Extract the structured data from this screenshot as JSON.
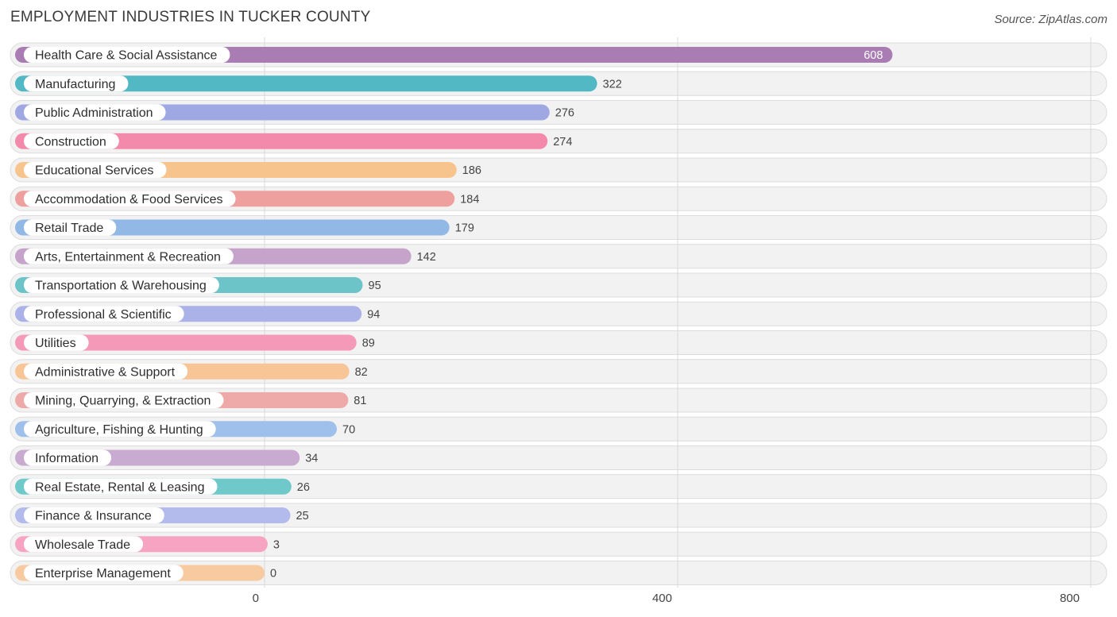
{
  "header": {
    "title": "EMPLOYMENT INDUSTRIES IN TUCKER COUNTY",
    "source": "Source: ZipAtlas.com"
  },
  "chart_data": {
    "type": "bar",
    "orientation": "horizontal",
    "title": "EMPLOYMENT INDUSTRIES IN TUCKER COUNTY",
    "xlabel": "",
    "ylabel": "",
    "xlim": [
      0,
      800
    ],
    "ticks": [
      0,
      400,
      800
    ],
    "grid": true,
    "categories": [
      "Health Care & Social Assistance",
      "Manufacturing",
      "Public Administration",
      "Construction",
      "Educational Services",
      "Accommodation & Food Services",
      "Retail Trade",
      "Arts, Entertainment & Recreation",
      "Transportation & Warehousing",
      "Professional & Scientific",
      "Utilities",
      "Administrative & Support",
      "Mining, Quarrying, & Extraction",
      "Agriculture, Fishing & Hunting",
      "Information",
      "Real Estate, Rental & Leasing",
      "Finance & Insurance",
      "Wholesale Trade",
      "Enterprise Management"
    ],
    "values": [
      608,
      322,
      276,
      274,
      186,
      184,
      179,
      142,
      95,
      94,
      89,
      82,
      81,
      70,
      34,
      26,
      25,
      3,
      0
    ],
    "colors": [
      "#a97db4",
      "#52b8c4",
      "#9fa8e3",
      "#f48aab",
      "#f8c48e",
      "#eda09e",
      "#92b8e6",
      "#c5a3cb",
      "#6cc4c9",
      "#aab2e8",
      "#f49ab8",
      "#f8c597",
      "#eeaaa8",
      "#9fc0ea",
      "#c9aad0",
      "#6fc9cb",
      "#b3baec",
      "#f6a4c2",
      "#f8caa0"
    ]
  }
}
